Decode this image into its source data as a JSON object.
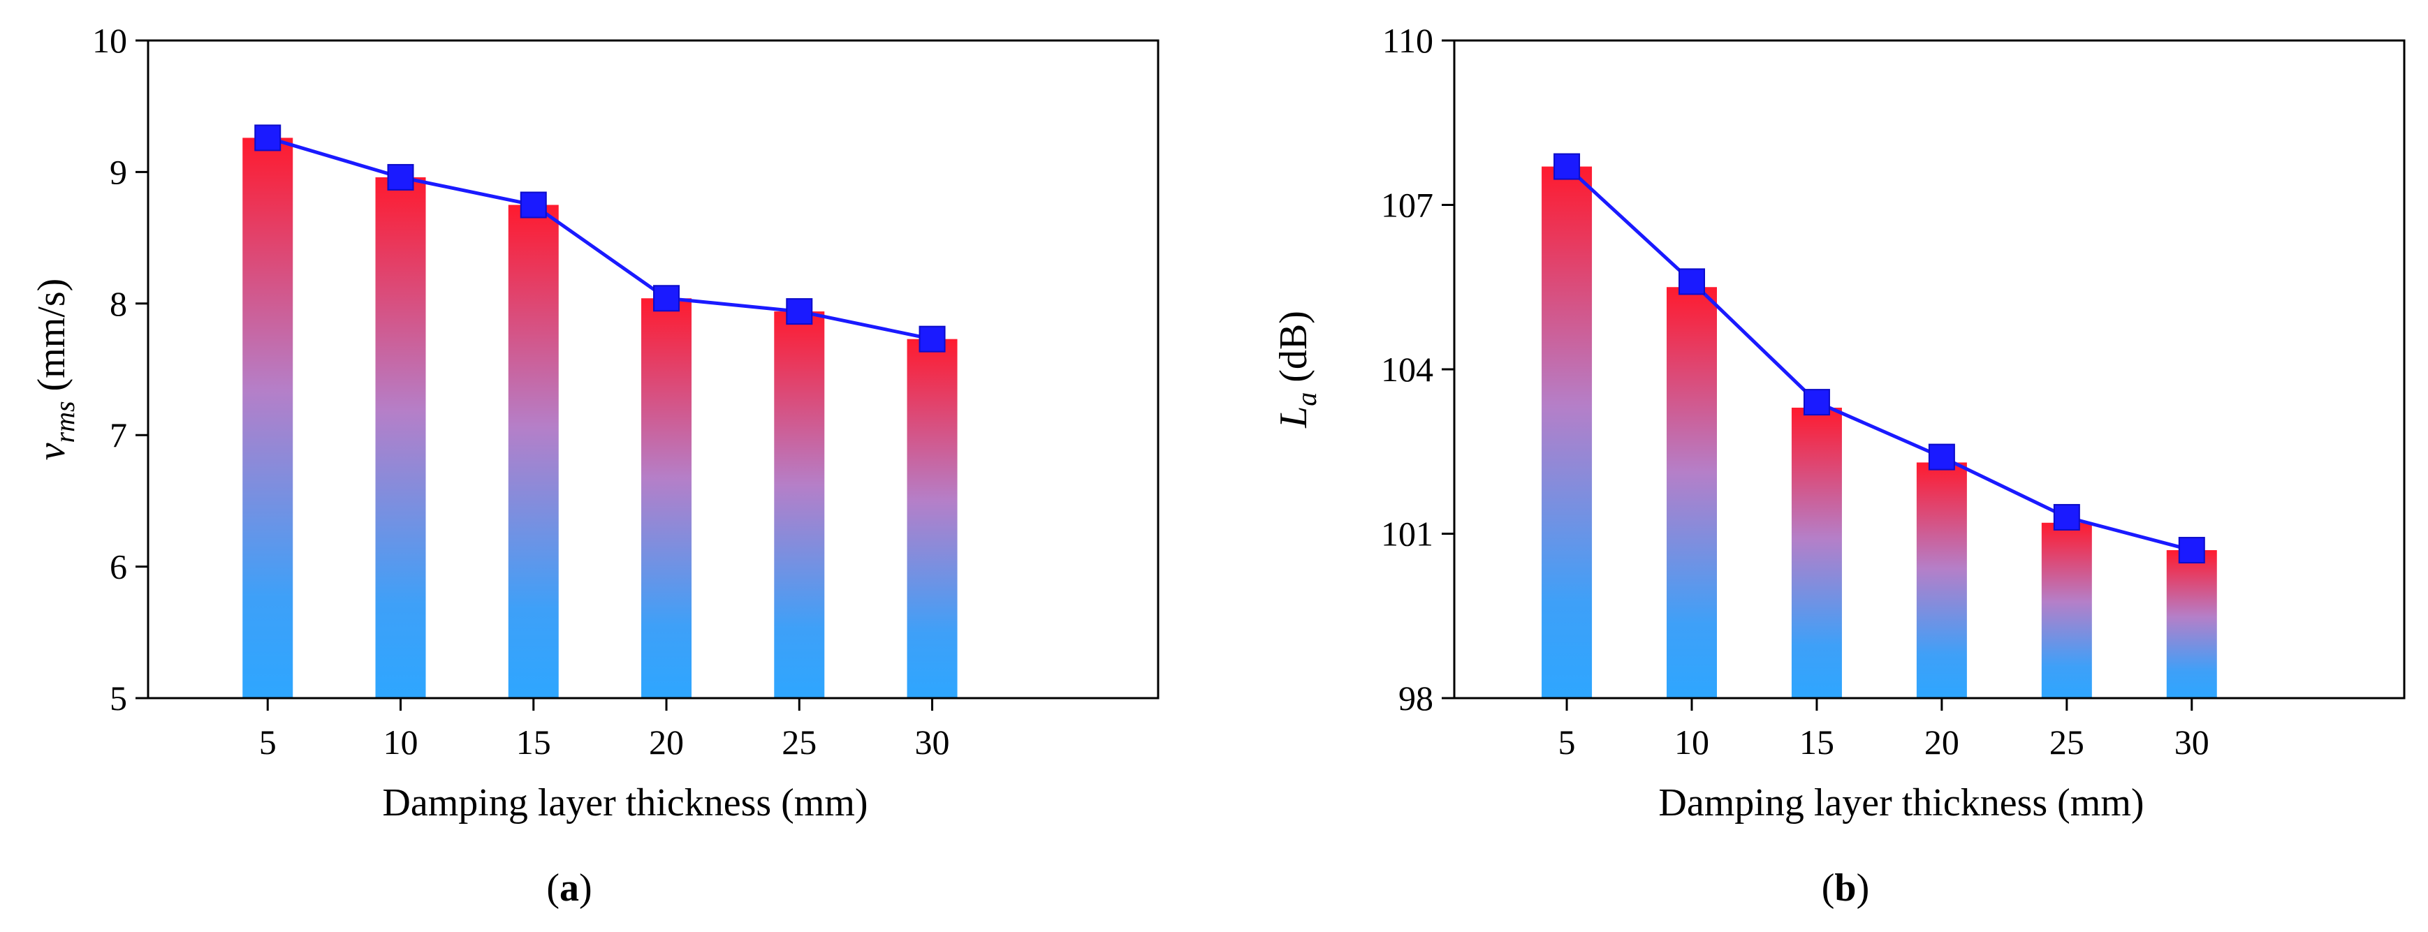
{
  "chart_data": [
    {
      "type": "bar",
      "panel_label": {
        "open": "(",
        "letter": "a",
        "close": ")"
      },
      "categories": [
        "5",
        "10",
        "15",
        "20",
        "25",
        "30"
      ],
      "values": [
        9.26,
        8.96,
        8.75,
        8.04,
        7.94,
        7.73
      ],
      "line_values": [
        9.26,
        8.96,
        8.75,
        8.04,
        7.94,
        7.73
      ],
      "xlabel": "Damping layer thickness (mm)",
      "ylabel": {
        "symbol": "v",
        "subscript": "rms",
        "unit": " (mm/s)"
      },
      "ylim": [
        5,
        10
      ],
      "yticks": [
        5,
        6,
        7,
        8,
        9,
        10
      ],
      "grid": false,
      "bar_gradient": {
        "top": "#ff1a2e",
        "bottom": "#2ea6ff"
      },
      "line_color": "#1a1aff",
      "marker": "square"
    },
    {
      "type": "bar",
      "panel_label": {
        "open": "(",
        "letter": "b",
        "close": ")"
      },
      "categories": [
        "5",
        "10",
        "15",
        "20",
        "25",
        "30"
      ],
      "values": [
        107.7,
        105.5,
        103.3,
        102.3,
        101.2,
        100.7
      ],
      "line_values": [
        107.7,
        105.6,
        103.4,
        102.4,
        101.3,
        100.7
      ],
      "xlabel": "Damping layer thickness (mm)",
      "ylabel": {
        "symbol": "L",
        "subscript": "a",
        "unit": "  (dB)"
      },
      "ylim": [
        98,
        110
      ],
      "yticks": [
        98,
        101,
        104,
        107,
        110
      ],
      "grid": false,
      "bar_gradient": {
        "top": "#ff1a2e",
        "bottom": "#2ea6ff"
      },
      "line_color": "#1a1aff",
      "marker": "square"
    }
  ]
}
